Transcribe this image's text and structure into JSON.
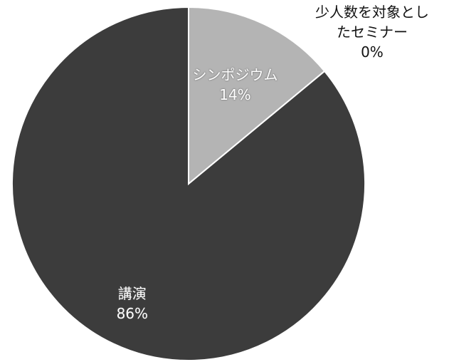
{
  "chart_data": {
    "type": "pie",
    "categories": [
      "シンポジウム",
      "少人数を対象としたセミナー",
      "講演"
    ],
    "values": [
      14,
      0,
      86
    ],
    "value_labels": [
      "14%",
      "0%",
      "86%"
    ],
    "colors": [
      "#b4b4b4",
      "#9a9a9a",
      "#3c3c3c"
    ]
  }
}
